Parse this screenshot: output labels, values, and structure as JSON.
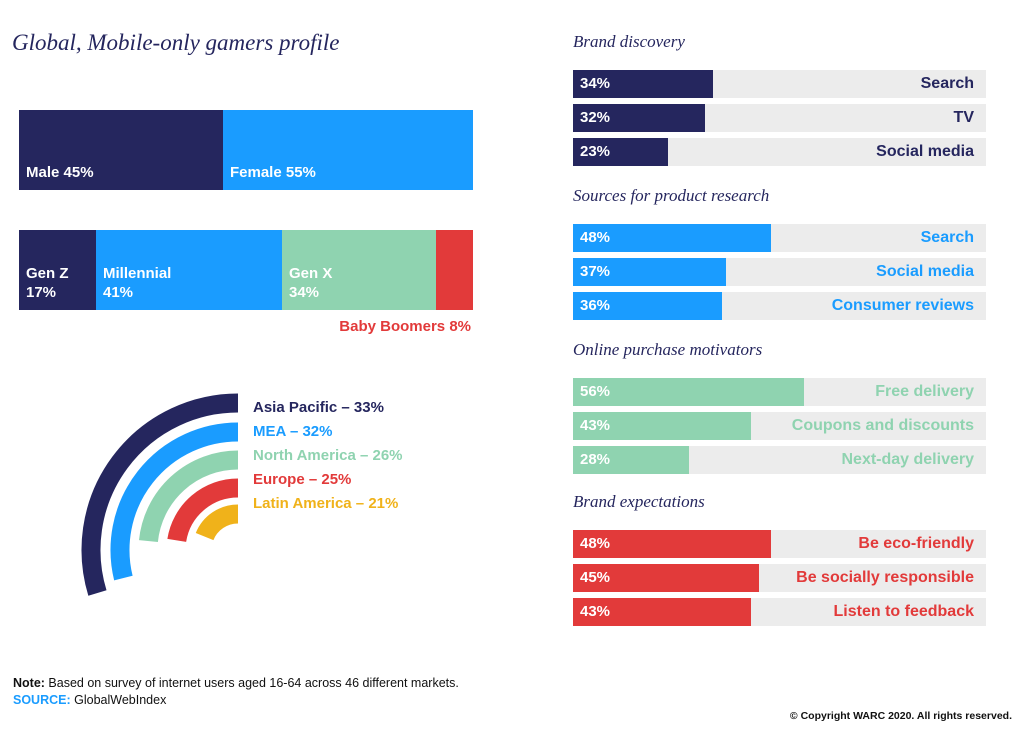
{
  "title": "Global, Mobile-only gamers profile",
  "colors": {
    "navy": "#25265e",
    "blue": "#1a9cff",
    "green": "#8fd3b0",
    "red": "#e23a3a",
    "yellow": "#f0b21a",
    "track": "#ececec"
  },
  "chart_data": [
    {
      "type": "bar",
      "stacked": true,
      "orientation": "horizontal",
      "categories": [
        "Male",
        "Female"
      ],
      "values": [
        45,
        55
      ],
      "labels": [
        "Male 45%",
        "Female 55%"
      ]
    },
    {
      "type": "bar",
      "stacked": true,
      "orientation": "horizontal",
      "categories": [
        "Gen Z",
        "Millennial",
        "Gen X",
        "Baby Boomers"
      ],
      "values": [
        17,
        41,
        34,
        8
      ],
      "labels": [
        "Gen Z\n17%",
        "Millennial\n41%",
        "Gen X\n34%",
        "Baby Boomers 8%"
      ]
    },
    {
      "type": "bar",
      "orientation": "radial",
      "categories": [
        "Asia Pacific",
        "MEA",
        "North America",
        "Europe",
        "Latin America"
      ],
      "values": [
        33,
        32,
        26,
        25,
        21
      ],
      "labels": [
        "Asia Pacific – 33%",
        "MEA – 32%",
        "North America – 26%",
        "Europe – 25%",
        "Latin America – 21%"
      ]
    },
    {
      "type": "bar",
      "orientation": "horizontal",
      "title": "Brand discovery",
      "xlim": [
        0,
        100
      ],
      "categories": [
        "Search",
        "TV",
        "Social media"
      ],
      "values": [
        34,
        32,
        23
      ]
    },
    {
      "type": "bar",
      "orientation": "horizontal",
      "title": "Sources for product research",
      "xlim": [
        0,
        100
      ],
      "categories": [
        "Search",
        "Social media",
        "Consumer reviews"
      ],
      "values": [
        48,
        37,
        36
      ]
    },
    {
      "type": "bar",
      "orientation": "horizontal",
      "title": "Online purchase motivators",
      "xlim": [
        0,
        100
      ],
      "categories": [
        "Free delivery",
        "Coupons and discounts",
        "Next-day delivery"
      ],
      "values": [
        56,
        43,
        28
      ]
    },
    {
      "type": "bar",
      "orientation": "horizontal",
      "title": "Brand expectations",
      "xlim": [
        0,
        100
      ],
      "categories": [
        "Be eco-friendly",
        "Be socially responsible",
        "Listen to feedback"
      ],
      "values": [
        48,
        45,
        43
      ]
    }
  ],
  "note_label": "Note:",
  "note_text": " Based on survey of internet users aged 16-64 across 46 different markets.",
  "source_label": "SOURCE:",
  "source_text": " GlobalWebIndex",
  "copyright": "© Copyright WARC 2020. All rights reserved."
}
